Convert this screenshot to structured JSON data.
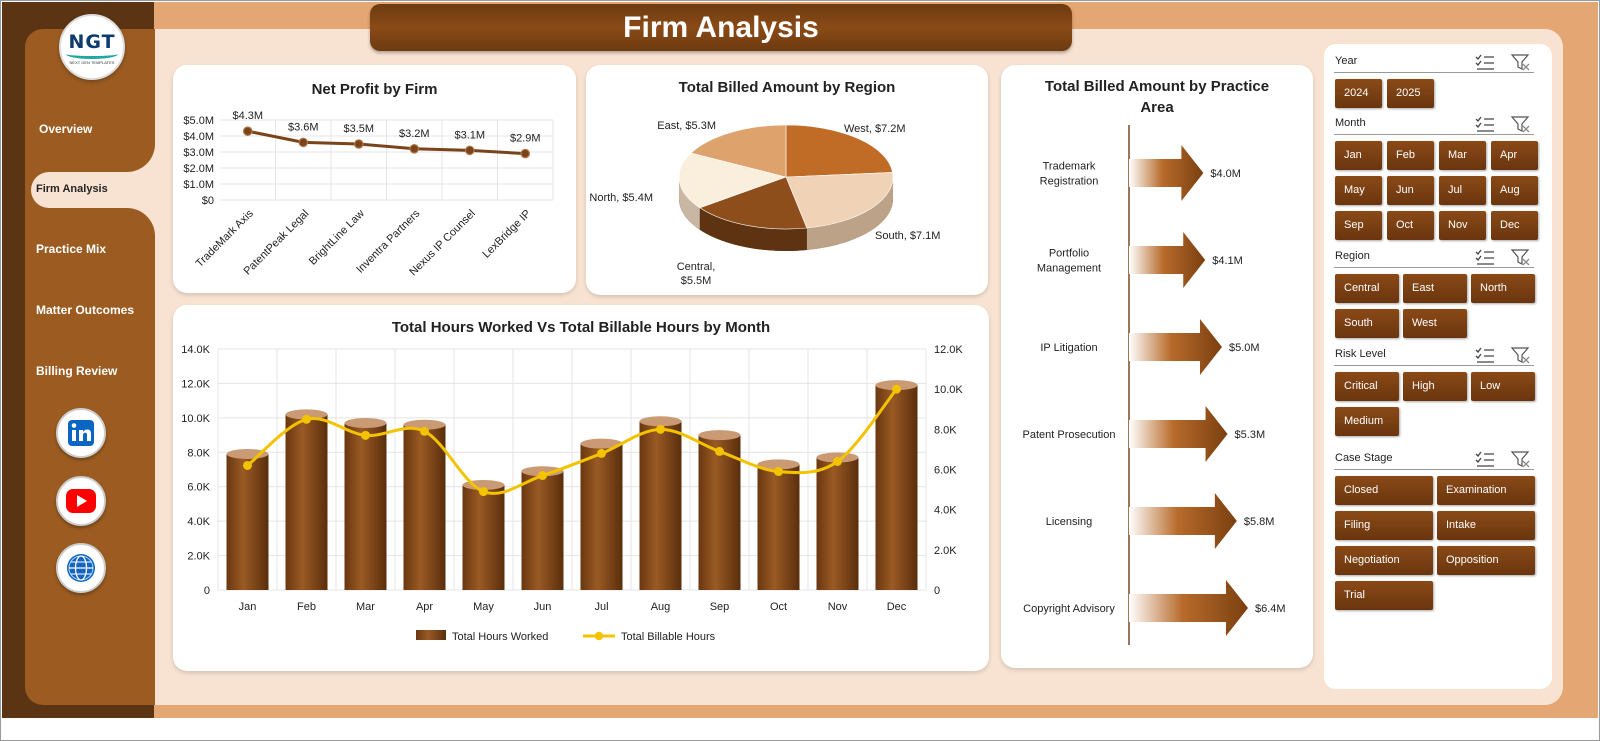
{
  "title": "Firm Analysis",
  "logo": {
    "text": "NGT",
    "subtitle": "NEXT GEN TEMPLATES"
  },
  "nav": [
    {
      "label": "Overview"
    },
    {
      "label": "Firm Analysis",
      "selected": true
    },
    {
      "label": "Practice Mix"
    },
    {
      "label": "Matter Outcomes"
    },
    {
      "label": "Billing Review"
    }
  ],
  "social": [
    {
      "name": "linkedin-icon",
      "color": "#0a66c2"
    },
    {
      "name": "youtube-icon",
      "color": "#ff0000"
    },
    {
      "name": "globe-icon",
      "color": "#1565c0"
    }
  ],
  "colors": {
    "brown_dark": "#5b3413",
    "brown": "#8a4b17",
    "accent_line": "#f3c300",
    "background": "#f8e3d2"
  },
  "charts": {
    "net_profit": {
      "title": "Net Profit by Firm"
    },
    "region": {
      "title": "Total Billed Amount by Region"
    },
    "practice": {
      "title_line1": "Total Billed Amount by Practice",
      "title_line2": "Area"
    },
    "hours": {
      "title": "Total Hours Worked Vs Total Billable Hours by Month"
    }
  },
  "chart_data": [
    {
      "type": "line",
      "title": "Net Profit by Firm",
      "categories": [
        "TradeMark Axis",
        "PatentPeak Legal",
        "BrightLine Law",
        "Inventra Partners",
        "Nexus IP Counsel",
        "LexBridge IP"
      ],
      "values": [
        4.3,
        3.6,
        3.5,
        3.2,
        3.1,
        2.9
      ],
      "data_labels": [
        "$4.3M",
        "$3.6M",
        "$3.5M",
        "$3.2M",
        "$3.1M",
        "$2.9M"
      ],
      "y_ticks": [
        "$5.0M",
        "$4.0M",
        "$3.0M",
        "$2.0M",
        "$1.0M",
        "$0"
      ],
      "ylim": [
        0,
        5
      ],
      "grid": true
    },
    {
      "type": "pie",
      "title": "Total Billed Amount by Region",
      "labels": [
        "West",
        "South",
        "Central",
        "North",
        "East"
      ],
      "values": [
        7.2,
        7.1,
        5.5,
        5.4,
        5.3
      ],
      "data_labels": [
        "West, $7.2M",
        "South, $7.1M",
        "Central,",
        "North, $5.4M",
        "East, $5.3M"
      ],
      "data_labels_extra": [
        "$5.5M"
      ],
      "colors": [
        "#c06c26",
        "#f0d3b7",
        "#8e4e1c",
        "#faeedd",
        "#dea26d"
      ]
    },
    {
      "type": "bar",
      "title": "Total Billed Amount by Practice Area",
      "categories": [
        [
          "Trademark",
          "Registration"
        ],
        [
          "Portfolio",
          "Management"
        ],
        [
          "IP Litigation"
        ],
        [
          "Patent Prosecution"
        ],
        [
          "Licensing"
        ],
        [
          "Copyright Advisory"
        ]
      ],
      "values": [
        4.0,
        4.1,
        5.0,
        5.3,
        5.8,
        6.4
      ],
      "data_labels": [
        "$4.0M",
        "$4.1M",
        "$5.0M",
        "$5.3M",
        "$5.8M",
        "$6.4M"
      ]
    },
    {
      "type": "bar",
      "title": "Total Hours Worked Vs Total Billable Hours by Month",
      "categories": [
        "Jan",
        "Feb",
        "Mar",
        "Apr",
        "May",
        "Jun",
        "Jul",
        "Aug",
        "Sep",
        "Oct",
        "Nov",
        "Dec"
      ],
      "series": [
        {
          "name": "Total Hours Worked",
          "type": "bar",
          "axis": "left",
          "values": [
            7900,
            10200,
            9700,
            9600,
            6100,
            6900,
            8500,
            9800,
            9000,
            7300,
            7700,
            11900
          ]
        },
        {
          "name": "Total Billable Hours",
          "type": "line",
          "axis": "right",
          "values": [
            6200,
            8500,
            7700,
            7900,
            4900,
            5700,
            6800,
            8000,
            6900,
            5900,
            6400,
            10000
          ]
        }
      ],
      "y_left_ticks": [
        "14.0K",
        "12.0K",
        "10.0K",
        "8.0K",
        "6.0K",
        "4.0K",
        "2.0K",
        "0"
      ],
      "y_right_ticks": [
        "12.0K",
        "10.0K",
        "8.0K",
        "6.0K",
        "4.0K",
        "2.0K",
        "0"
      ],
      "ylim_left": [
        0,
        14000
      ],
      "ylim_right": [
        0,
        12000
      ],
      "legend": "bottom",
      "grid": true
    }
  ],
  "filters": {
    "year": {
      "label": "Year",
      "options": [
        "2024",
        "2025"
      ]
    },
    "month": {
      "label": "Month",
      "options": [
        "Jan",
        "Feb",
        "Mar",
        "Apr",
        "May",
        "Jun",
        "Jul",
        "Aug",
        "Sep",
        "Oct",
        "Nov",
        "Dec"
      ]
    },
    "region": {
      "label": "Region",
      "options": [
        "Central",
        "East",
        "North",
        "South",
        "West"
      ]
    },
    "risk": {
      "label": "Risk Level",
      "options": [
        "Critical",
        "High",
        "Low",
        "Medium"
      ]
    },
    "stage": {
      "label": "Case Stage",
      "options": [
        "Closed",
        "Examination",
        "Filing",
        "Intake",
        "Negotiation",
        "Opposition",
        "Trial"
      ]
    },
    "icons": [
      "multi-select-icon",
      "clear-filter-icon"
    ]
  }
}
